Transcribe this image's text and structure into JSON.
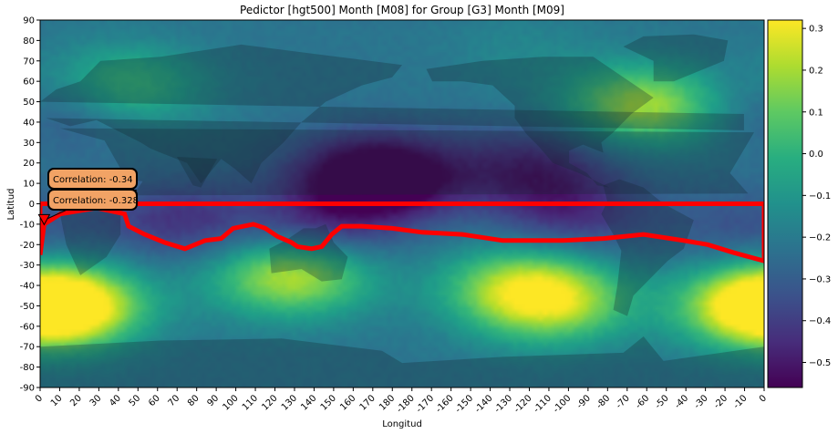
{
  "chart_data": {
    "type": "heatmap",
    "title": "Pedictor [hgt500] Month [M08] for Group [G3] Month [M09]",
    "xlabel": "Longitud",
    "ylabel": "Latitud",
    "x_ticks": [
      "0",
      "10",
      "20",
      "30",
      "40",
      "50",
      "60",
      "70",
      "80",
      "90",
      "100",
      "110",
      "120",
      "130",
      "140",
      "150",
      "160",
      "170",
      "180",
      "-180",
      "-170",
      "-160",
      "-150",
      "-140",
      "-130",
      "-120",
      "-110",
      "-100",
      "-90",
      "-80",
      "-70",
      "-60",
      "-50",
      "-40",
      "-30",
      "-20",
      "-10",
      "0"
    ],
    "y_ticks": [
      "90",
      "80",
      "70",
      "60",
      "50",
      "40",
      "30",
      "20",
      "10",
      "0",
      "-10",
      "-20",
      "-30",
      "-40",
      "-50",
      "-60",
      "-70",
      "-80",
      "-90"
    ],
    "xlim": [
      0,
      360
    ],
    "ylim": [
      -90,
      90
    ],
    "colormap": "viridis",
    "colorbar": {
      "range": [
        -0.56,
        0.32
      ],
      "ticks": [
        "0.3",
        "0.2",
        "0.1",
        "0.0",
        "−0.1",
        "−0.2",
        "−0.3",
        "−0.4",
        "−0.5"
      ],
      "tick_values": [
        0.3,
        0.2,
        0.1,
        0.0,
        -0.1,
        -0.2,
        -0.3,
        -0.4,
        -0.5
      ]
    },
    "selected_region": {
      "color": "#ff0000",
      "lon_range": [
        0,
        360
      ],
      "lat_top": 0,
      "lat_bottom_approx": -20
    },
    "annotations": [
      {
        "text": "Correlation: -0.34",
        "lon": 45,
        "lat": 4
      },
      {
        "text": "Correlation: -0.328",
        "lon": 2,
        "lat": -8
      }
    ],
    "field_features": [
      {
        "lon": 125,
        "lat": -35,
        "value": 0.3
      },
      {
        "lon": 10,
        "lat": -50,
        "value": 0.3
      },
      {
        "lon": 360,
        "lat": -50,
        "value": 0.28
      },
      {
        "lon": 300,
        "lat": 48,
        "value": 0.25
      },
      {
        "lon": 40,
        "lat": 57,
        "value": 0.12
      },
      {
        "lon": 255,
        "lat": -50,
        "value": 0.15
      },
      {
        "lon": 240,
        "lat": -40,
        "value": 0.18
      },
      {
        "lon": 165,
        "lat": 15,
        "value": -0.5
      },
      {
        "lon": 170,
        "lat": 12,
        "value": -0.53
      },
      {
        "lon": 245,
        "lat": 18,
        "value": -0.5
      },
      {
        "lon": 265,
        "lat": -5,
        "value": -0.45
      },
      {
        "lon": 140,
        "lat": -12,
        "value": -0.45
      },
      {
        "lon": 70,
        "lat": -8,
        "value": -0.45
      },
      {
        "lon": 350,
        "lat": -12,
        "value": -0.35
      },
      {
        "lon": 15,
        "lat": 47,
        "value": -0.4
      },
      {
        "lon": 240,
        "lat": 75,
        "value": -0.15
      }
    ]
  }
}
